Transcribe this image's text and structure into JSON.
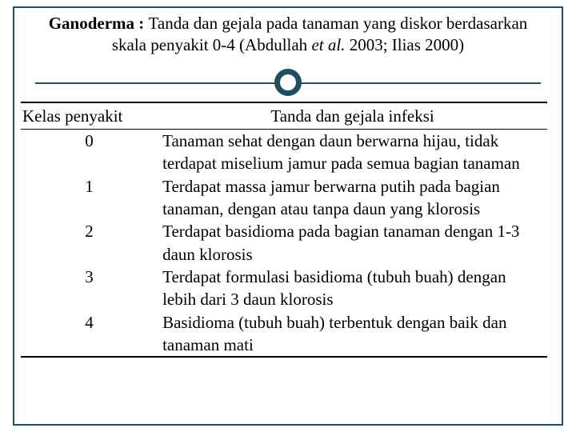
{
  "colors": {
    "frame": "#1f4e5e",
    "text": "#000000",
    "background": "#ffffff",
    "table_border": "#000000"
  },
  "fonts": {
    "body_family": "Times New Roman",
    "title_size_pt": 16,
    "table_size_pt": 16
  },
  "title": {
    "line1_prefix_bold": "Ganoderma : ",
    "line1_rest": "Tanda dan gejala pada tanaman yang diskor berdasarkan",
    "line2_prefix": "skala penyakit 0-4 (Abdullah ",
    "line2_italic": "et al.",
    "line2_suffix": " 2003; Ilias 2000)"
  },
  "table": {
    "headers": {
      "kelas": "Kelas penyakit",
      "desc": "Tanda dan gejala infeksi"
    },
    "rows": [
      {
        "kelas": "0",
        "desc": "Tanaman sehat dengan daun berwarna hijau, tidak terdapat miselium jamur pada semua bagian tanaman"
      },
      {
        "kelas": "1",
        "desc": "Terdapat massa jamur berwarna putih pada bagian tanaman, dengan atau tanpa daun yang klorosis"
      },
      {
        "kelas": "2",
        "desc": "Terdapat basidioma pada bagian tanaman dengan 1-3 daun klorosis"
      },
      {
        "kelas": "3",
        "desc": "Terdapat formulasi basidioma (tubuh buah) dengan lebih dari 3 daun klorosis"
      },
      {
        "kelas": "4",
        "desc": "Basidioma (tubuh buah) terbentuk dengan baik dan tanaman mati"
      }
    ]
  }
}
